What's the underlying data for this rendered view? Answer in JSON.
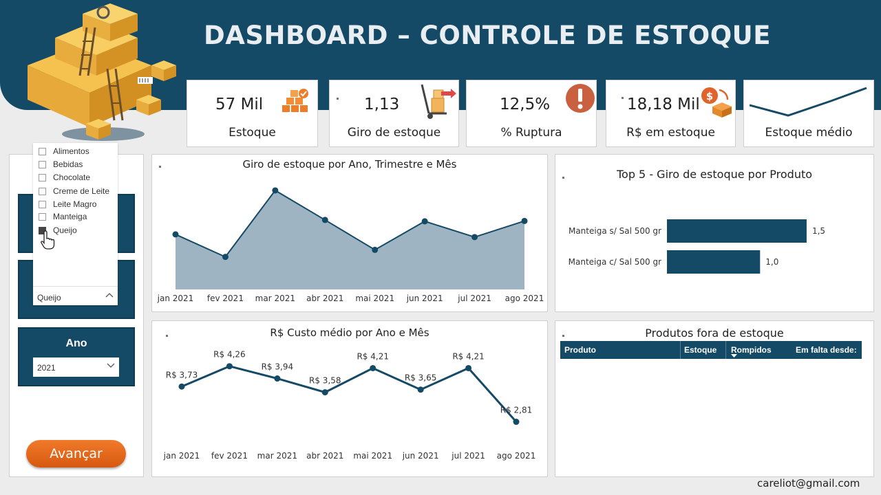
{
  "header": {
    "title": "DASHBOARD – CONTROLE DE ESTOQUE"
  },
  "kpis": [
    {
      "value": "57 Mil",
      "label": "Estoque",
      "icon": "boxes-icon"
    },
    {
      "value": "1,13",
      "label": "Giro de estoque",
      "icon": "hand-truck-icon"
    },
    {
      "value": "12,5%",
      "label": "% Ruptura",
      "icon": "alert-icon"
    },
    {
      "value": "18,18 Mil",
      "label": "R$ em estoque",
      "icon": "money-box-icon"
    },
    {
      "value": "",
      "label": "Estoque médio",
      "icon": "sparkline-icon"
    }
  ],
  "category_slicer": {
    "options": [
      {
        "label": "Alimentos",
        "checked": false
      },
      {
        "label": "Bebidas",
        "checked": false
      },
      {
        "label": "Chocolate",
        "checked": false
      },
      {
        "label": "Creme de Leite",
        "checked": false
      },
      {
        "label": "Leite Magro",
        "checked": false
      },
      {
        "label": "Manteiga",
        "checked": false
      },
      {
        "label": "Queijo",
        "checked": true
      }
    ],
    "selected": "Queijo"
  },
  "year_slicer": {
    "title": "Ano",
    "selected": "2021"
  },
  "button": {
    "label": "Avançar"
  },
  "chart_data": [
    {
      "type": "area",
      "title": "Giro de estoque por Ano, Trimestre e Mês",
      "categories": [
        "jan 2021",
        "fev 2021",
        "mar 2021",
        "abr 2021",
        "mai 2021",
        "jun 2021",
        "jul 2021",
        "ago 2021"
      ],
      "values": [
        1.04,
        0.37,
        2.35,
        1.47,
        0.58,
        1.43,
        0.96,
        1.44
      ],
      "ylim": [
        -0.6,
        2.8
      ],
      "color": "#9eb4c3",
      "line_color": "#154a66"
    },
    {
      "type": "line",
      "title": "R$ Custo médio por Ano e Mês",
      "categories": [
        "jan 2021",
        "fev 2021",
        "mar 2021",
        "abr 2021",
        "mai 2021",
        "jun 2021",
        "jul 2021",
        "ago 2021"
      ],
      "values": [
        3.73,
        4.26,
        3.94,
        3.58,
        4.21,
        3.65,
        4.21,
        2.81
      ],
      "data_labels": [
        "R$ 3,73",
        "R$ 4,26",
        "R$ 3,94",
        "R$ 3,58",
        "R$ 4,21",
        "R$ 3,65",
        "R$ 4,21",
        "R$ 2,81"
      ],
      "ylim": [
        2.3,
        4.9
      ],
      "line_color": "#154a66"
    },
    {
      "type": "bar",
      "title": "Top 5 - Giro de estoque por Produto",
      "categories": [
        "Manteiga s/ Sal 500 gr",
        "Manteiga c/ Sal 500 gr"
      ],
      "values": [
        1.5,
        1.0
      ],
      "data_labels": [
        "1,5",
        "1,0"
      ],
      "xlim": [
        0,
        1.7
      ],
      "color": "#154a66"
    }
  ],
  "stock_table": {
    "title": "Produtos fora de estoque",
    "columns": [
      "Produto",
      "Estoque",
      "Rompidos",
      "Em falta desde:"
    ]
  },
  "footer": {
    "email": "careliot@gmail.com"
  }
}
